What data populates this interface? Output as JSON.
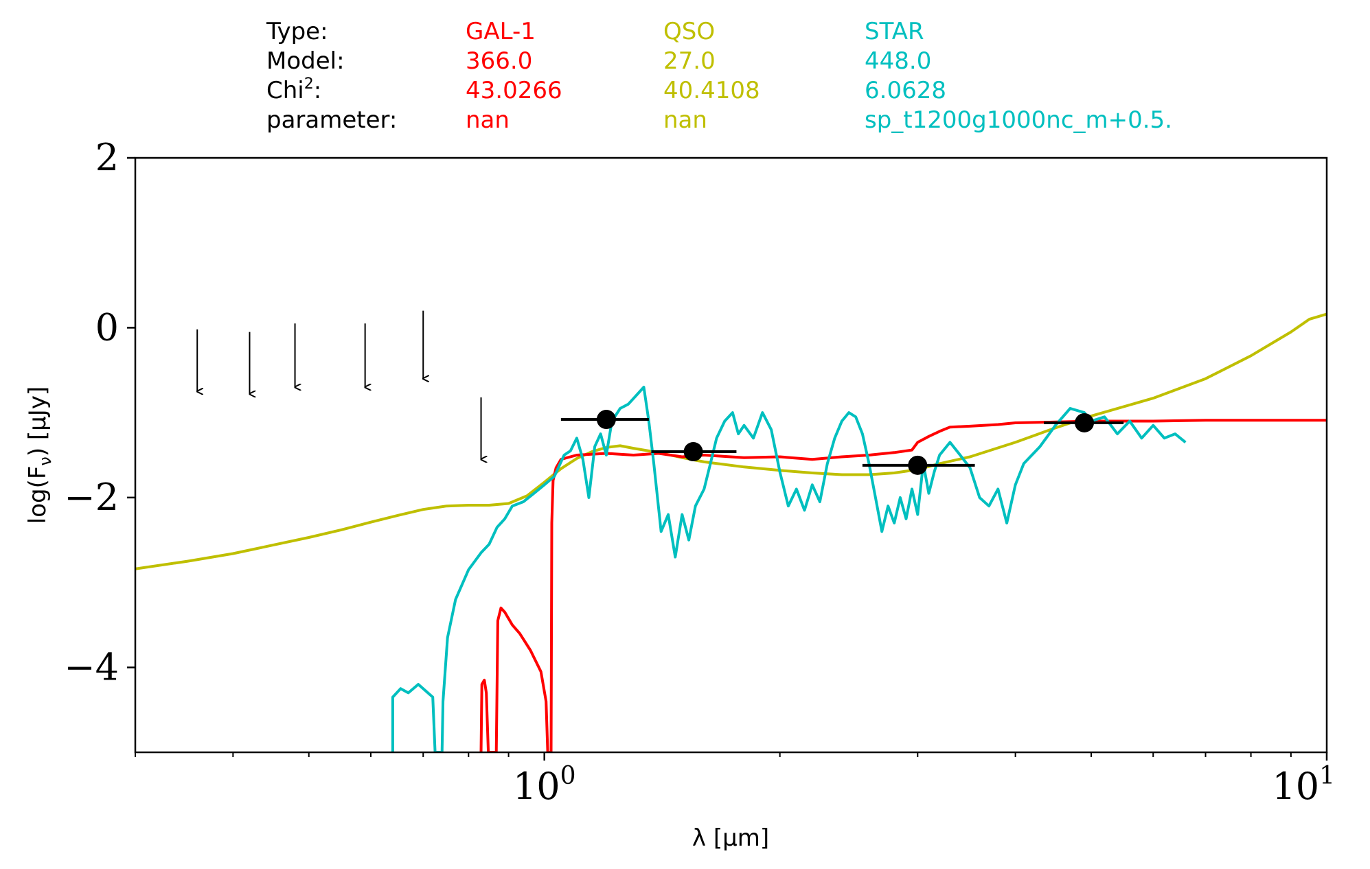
{
  "header_table": {
    "row_labels": [
      "Type:",
      "Model:",
      "Chi",
      "parameter:"
    ],
    "chi_suffix": ":",
    "chi_superscript": "2",
    "columns": [
      {
        "color": "#ff0000",
        "values": [
          "GAL-1",
          "366.0",
          "43.0266",
          "nan"
        ]
      },
      {
        "color": "#bfbf00",
        "values": [
          "QSO",
          "27.0",
          "40.4108",
          "nan"
        ]
      },
      {
        "color": "#00bfbf",
        "values": [
          "STAR",
          "448.0",
          "6.0628",
          "sp_t1200g1000nc_m+0.5."
        ]
      }
    ]
  },
  "chart_data": {
    "type": "line",
    "xlabel": "λ [μm]",
    "ylabel": "log(F",
    "ylabel_sub": "ν",
    "ylabel_unit": ") [μJy]",
    "xscale": "log",
    "xlim": [
      0.3,
      10
    ],
    "ylim": [
      -5,
      2
    ],
    "x_major_ticks": [
      {
        "value": 1,
        "base": "10",
        "exp": "0"
      },
      {
        "value": 10,
        "base": "10",
        "exp": "1"
      }
    ],
    "x_minor_ticks": [
      0.3,
      0.4,
      0.5,
      0.6,
      0.7,
      0.8,
      0.9,
      2,
      3,
      4,
      5,
      6,
      7,
      8,
      9
    ],
    "y_ticks": [
      {
        "value": 2,
        "label": "2"
      },
      {
        "value": 0,
        "label": "0"
      },
      {
        "value": -2,
        "label": "−2"
      },
      {
        "value": -4,
        "label": "−4"
      }
    ],
    "series": [
      {
        "color": "#bfbf00",
        "points": [
          [
            0.3,
            -2.84
          ],
          [
            0.35,
            -2.75
          ],
          [
            0.4,
            -2.66
          ],
          [
            0.45,
            -2.56
          ],
          [
            0.5,
            -2.47
          ],
          [
            0.55,
            -2.38
          ],
          [
            0.6,
            -2.29
          ],
          [
            0.65,
            -2.21
          ],
          [
            0.7,
            -2.14
          ],
          [
            0.75,
            -2.1
          ],
          [
            0.8,
            -2.09
          ],
          [
            0.85,
            -2.09
          ],
          [
            0.9,
            -2.07
          ],
          [
            0.95,
            -1.98
          ],
          [
            1.0,
            -1.82
          ],
          [
            1.05,
            -1.66
          ],
          [
            1.1,
            -1.54
          ],
          [
            1.15,
            -1.46
          ],
          [
            1.2,
            -1.41
          ],
          [
            1.25,
            -1.39
          ],
          [
            1.3,
            -1.42
          ],
          [
            1.4,
            -1.47
          ],
          [
            1.5,
            -1.53
          ],
          [
            1.6,
            -1.58
          ],
          [
            1.8,
            -1.64
          ],
          [
            2.0,
            -1.68
          ],
          [
            2.2,
            -1.71
          ],
          [
            2.4,
            -1.73
          ],
          [
            2.6,
            -1.73
          ],
          [
            2.8,
            -1.71
          ],
          [
            3.0,
            -1.67
          ],
          [
            3.2,
            -1.6
          ],
          [
            3.5,
            -1.52
          ],
          [
            4.0,
            -1.35
          ],
          [
            4.5,
            -1.18
          ],
          [
            5.0,
            -1.04
          ],
          [
            6.0,
            -0.83
          ],
          [
            7.0,
            -0.6
          ],
          [
            8.0,
            -0.33
          ],
          [
            9.0,
            -0.05
          ],
          [
            9.5,
            0.1
          ],
          [
            10.0,
            0.16
          ]
        ]
      },
      {
        "color": "#ff0000",
        "points": [
          [
            0.83,
            -5
          ],
          [
            0.832,
            -4.2
          ],
          [
            0.838,
            -4.15
          ],
          [
            0.843,
            -4.3
          ],
          [
            0.848,
            -5
          ],
          [
            0.868,
            -5
          ],
          [
            0.872,
            -3.45
          ],
          [
            0.88,
            -3.3
          ],
          [
            0.89,
            -3.35
          ],
          [
            0.91,
            -3.5
          ],
          [
            0.93,
            -3.6
          ],
          [
            0.96,
            -3.8
          ],
          [
            0.99,
            -4.05
          ],
          [
            1.005,
            -4.4
          ],
          [
            1.01,
            -5
          ],
          [
            1.02,
            -5
          ],
          [
            1.022,
            -2.3
          ],
          [
            1.026,
            -1.8
          ],
          [
            1.035,
            -1.65
          ],
          [
            1.05,
            -1.55
          ],
          [
            1.1,
            -1.5
          ],
          [
            1.2,
            -1.48
          ],
          [
            1.3,
            -1.5
          ],
          [
            1.4,
            -1.48
          ],
          [
            1.5,
            -1.52
          ],
          [
            1.6,
            -1.5
          ],
          [
            1.8,
            -1.53
          ],
          [
            2.0,
            -1.52
          ],
          [
            2.2,
            -1.55
          ],
          [
            2.4,
            -1.52
          ],
          [
            2.6,
            -1.5
          ],
          [
            2.8,
            -1.47
          ],
          [
            2.95,
            -1.44
          ],
          [
            3.0,
            -1.35
          ],
          [
            3.1,
            -1.28
          ],
          [
            3.2,
            -1.22
          ],
          [
            3.3,
            -1.17
          ],
          [
            3.5,
            -1.16
          ],
          [
            3.8,
            -1.14
          ],
          [
            4.0,
            -1.12
          ],
          [
            4.5,
            -1.11
          ],
          [
            5.0,
            -1.1
          ],
          [
            6.0,
            -1.1
          ],
          [
            7.0,
            -1.09
          ],
          [
            8.0,
            -1.09
          ],
          [
            9.0,
            -1.09
          ],
          [
            10.0,
            -1.09
          ]
        ]
      },
      {
        "color": "#00bfbf",
        "points": [
          [
            0.64,
            -5
          ],
          [
            0.64,
            -4.35
          ],
          [
            0.655,
            -4.25
          ],
          [
            0.67,
            -4.3
          ],
          [
            0.69,
            -4.2
          ],
          [
            0.7,
            -4.25
          ],
          [
            0.72,
            -4.35
          ],
          [
            0.725,
            -5
          ],
          [
            0.74,
            -5
          ],
          [
            0.742,
            -4.4
          ],
          [
            0.752,
            -3.65
          ],
          [
            0.77,
            -3.2
          ],
          [
            0.8,
            -2.85
          ],
          [
            0.83,
            -2.65
          ],
          [
            0.85,
            -2.55
          ],
          [
            0.87,
            -2.35
          ],
          [
            0.89,
            -2.25
          ],
          [
            0.91,
            -2.1
          ],
          [
            0.94,
            -2.05
          ],
          [
            0.97,
            -1.95
          ],
          [
            1.0,
            -1.85
          ],
          [
            1.03,
            -1.75
          ],
          [
            1.06,
            -1.5
          ],
          [
            1.08,
            -1.45
          ],
          [
            1.1,
            -1.3
          ],
          [
            1.12,
            -1.55
          ],
          [
            1.14,
            -2.0
          ],
          [
            1.16,
            -1.4
          ],
          [
            1.18,
            -1.25
          ],
          [
            1.2,
            -1.5
          ],
          [
            1.22,
            -1.1
          ],
          [
            1.25,
            -0.95
          ],
          [
            1.28,
            -0.9
          ],
          [
            1.31,
            -0.8
          ],
          [
            1.34,
            -0.7
          ],
          [
            1.36,
            -1.1
          ],
          [
            1.38,
            -1.6
          ],
          [
            1.41,
            -2.4
          ],
          [
            1.44,
            -2.2
          ],
          [
            1.47,
            -2.7
          ],
          [
            1.5,
            -2.2
          ],
          [
            1.53,
            -2.5
          ],
          [
            1.56,
            -2.1
          ],
          [
            1.6,
            -1.9
          ],
          [
            1.63,
            -1.6
          ],
          [
            1.66,
            -1.3
          ],
          [
            1.7,
            -1.1
          ],
          [
            1.74,
            -1.0
          ],
          [
            1.77,
            -1.25
          ],
          [
            1.8,
            -1.15
          ],
          [
            1.85,
            -1.3
          ],
          [
            1.9,
            -1.0
          ],
          [
            1.95,
            -1.2
          ],
          [
            2.0,
            -1.7
          ],
          [
            2.05,
            -2.1
          ],
          [
            2.1,
            -1.9
          ],
          [
            2.15,
            -2.15
          ],
          [
            2.2,
            -1.85
          ],
          [
            2.25,
            -2.05
          ],
          [
            2.3,
            -1.6
          ],
          [
            2.35,
            -1.3
          ],
          [
            2.4,
            -1.1
          ],
          [
            2.45,
            -1.0
          ],
          [
            2.5,
            -1.05
          ],
          [
            2.55,
            -1.25
          ],
          [
            2.6,
            -1.6
          ],
          [
            2.65,
            -2.0
          ],
          [
            2.7,
            -2.4
          ],
          [
            2.75,
            -2.1
          ],
          [
            2.8,
            -2.3
          ],
          [
            2.85,
            -2.0
          ],
          [
            2.9,
            -2.25
          ],
          [
            2.95,
            -1.9
          ],
          [
            3.0,
            -2.2
          ],
          [
            3.05,
            -1.6
          ],
          [
            3.1,
            -1.95
          ],
          [
            3.15,
            -1.7
          ],
          [
            3.2,
            -1.5
          ],
          [
            3.3,
            -1.35
          ],
          [
            3.4,
            -1.5
          ],
          [
            3.5,
            -1.65
          ],
          [
            3.6,
            -2.0
          ],
          [
            3.7,
            -2.1
          ],
          [
            3.8,
            -1.9
          ],
          [
            3.9,
            -2.3
          ],
          [
            4.0,
            -1.85
          ],
          [
            4.1,
            -1.6
          ],
          [
            4.3,
            -1.4
          ],
          [
            4.5,
            -1.15
          ],
          [
            4.7,
            -0.95
          ],
          [
            4.9,
            -1.0
          ],
          [
            5.0,
            -1.1
          ],
          [
            5.2,
            -1.05
          ],
          [
            5.4,
            -1.25
          ],
          [
            5.6,
            -1.1
          ],
          [
            5.8,
            -1.3
          ],
          [
            6.0,
            -1.15
          ],
          [
            6.2,
            -1.3
          ],
          [
            6.4,
            -1.25
          ],
          [
            6.6,
            -1.35
          ]
        ]
      }
    ],
    "data_points": [
      {
        "x": 1.2,
        "y": -1.08,
        "xerr": [
          1.05,
          1.36
        ]
      },
      {
        "x": 1.55,
        "y": -1.46,
        "xerr": [
          1.37,
          1.76
        ]
      },
      {
        "x": 3.0,
        "y": -1.62,
        "xerr": [
          2.55,
          3.55
        ]
      },
      {
        "x": 4.9,
        "y": -1.12,
        "xerr": [
          4.35,
          5.5
        ]
      }
    ],
    "upper_limits": [
      {
        "x": 0.36,
        "y_top": -0.02,
        "y_tip": -0.75
      },
      {
        "x": 0.42,
        "y_top": -0.05,
        "y_tip": -0.78
      },
      {
        "x": 0.48,
        "y_top": 0.05,
        "y_tip": -0.7
      },
      {
        "x": 0.59,
        "y_top": 0.05,
        "y_tip": -0.7
      },
      {
        "x": 0.7,
        "y_top": 0.2,
        "y_tip": -0.6
      },
      {
        "x": 0.83,
        "y_top": -0.82,
        "y_tip": -1.55
      }
    ]
  }
}
